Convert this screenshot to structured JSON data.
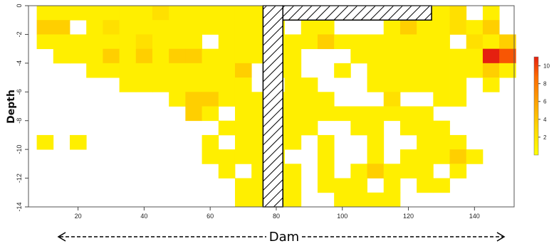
{
  "chart_data": {
    "type": "heatmap",
    "xlabel": "Dam",
    "ylabel": "Depth",
    "xlim": [
      5,
      152
    ],
    "ylim": [
      -14,
      0
    ],
    "x_ticks": [
      20,
      40,
      60,
      80,
      100,
      120,
      140
    ],
    "y_ticks": [
      0,
      -2,
      -4,
      -6,
      -8,
      -10,
      -12,
      -14
    ],
    "cell_width": 5,
    "cell_height": 1,
    "colorscale": {
      "min": 0,
      "max": 11,
      "ticks": [
        2,
        4,
        6,
        8,
        10
      ],
      "colors": [
        "#ffff00",
        "#ffd400",
        "#ffa000",
        "#ff6a00",
        "#e52010"
      ]
    },
    "cells": [
      {
        "x": 10,
        "y": -0.5,
        "v": 1
      },
      {
        "x": 15,
        "y": -0.5,
        "v": 1
      },
      {
        "x": 20,
        "y": -0.5,
        "v": 1
      },
      {
        "x": 25,
        "y": -0.5,
        "v": 1
      },
      {
        "x": 30,
        "y": -0.5,
        "v": 1
      },
      {
        "x": 35,
        "y": -0.5,
        "v": 1
      },
      {
        "x": 40,
        "y": -0.5,
        "v": 1
      },
      {
        "x": 45,
        "y": -0.5,
        "v": 2
      },
      {
        "x": 50,
        "y": -0.5,
        "v": 1
      },
      {
        "x": 55,
        "y": -0.5,
        "v": 1
      },
      {
        "x": 60,
        "y": -0.5,
        "v": 1
      },
      {
        "x": 65,
        "y": -0.5,
        "v": 1
      },
      {
        "x": 70,
        "y": -0.5,
        "v": 1
      },
      {
        "x": 130,
        "y": -0.5,
        "v": 1
      },
      {
        "x": 135,
        "y": -0.5,
        "v": 2
      },
      {
        "x": 145,
        "y": -0.5,
        "v": 1
      },
      {
        "x": 10,
        "y": -1.5,
        "v": 3
      },
      {
        "x": 15,
        "y": -1.5,
        "v": 3
      },
      {
        "x": 25,
        "y": -1.5,
        "v": 1
      },
      {
        "x": 30,
        "y": -1.5,
        "v": 2
      },
      {
        "x": 35,
        "y": -1.5,
        "v": 1
      },
      {
        "x": 40,
        "y": -1.5,
        "v": 1
      },
      {
        "x": 45,
        "y": -1.5,
        "v": 1
      },
      {
        "x": 50,
        "y": -1.5,
        "v": 1
      },
      {
        "x": 55,
        "y": -1.5,
        "v": 1
      },
      {
        "x": 60,
        "y": -1.5,
        "v": 1
      },
      {
        "x": 65,
        "y": -1.5,
        "v": 1
      },
      {
        "x": 70,
        "y": -1.5,
        "v": 1
      },
      {
        "x": 90,
        "y": -1.5,
        "v": 1
      },
      {
        "x": 95,
        "y": -1.5,
        "v": 1
      },
      {
        "x": 115,
        "y": -1.5,
        "v": 1
      },
      {
        "x": 120,
        "y": -1.5,
        "v": 3
      },
      {
        "x": 125,
        "y": -1.5,
        "v": 1
      },
      {
        "x": 130,
        "y": -1.5,
        "v": 1
      },
      {
        "x": 135,
        "y": -1.5,
        "v": 2
      },
      {
        "x": 140,
        "y": -1.5,
        "v": 1
      },
      {
        "x": 145,
        "y": -1.5,
        "v": 3
      },
      {
        "x": 10,
        "y": -2.5,
        "v": 1
      },
      {
        "x": 15,
        "y": -2.5,
        "v": 1
      },
      {
        "x": 20,
        "y": -2.5,
        "v": 1
      },
      {
        "x": 25,
        "y": -2.5,
        "v": 1
      },
      {
        "x": 30,
        "y": -2.5,
        "v": 1
      },
      {
        "x": 35,
        "y": -2.5,
        "v": 1
      },
      {
        "x": 40,
        "y": -2.5,
        "v": 2
      },
      {
        "x": 45,
        "y": -2.5,
        "v": 1
      },
      {
        "x": 50,
        "y": -2.5,
        "v": 1
      },
      {
        "x": 55,
        "y": -2.5,
        "v": 1
      },
      {
        "x": 65,
        "y": -2.5,
        "v": 1
      },
      {
        "x": 70,
        "y": -2.5,
        "v": 1
      },
      {
        "x": 85,
        "y": -2.5,
        "v": 1
      },
      {
        "x": 90,
        "y": -2.5,
        "v": 1
      },
      {
        "x": 95,
        "y": -2.5,
        "v": 3
      },
      {
        "x": 100,
        "y": -2.5,
        "v": 1
      },
      {
        "x": 105,
        "y": -2.5,
        "v": 1
      },
      {
        "x": 110,
        "y": -2.5,
        "v": 1
      },
      {
        "x": 115,
        "y": -2.5,
        "v": 1
      },
      {
        "x": 120,
        "y": -2.5,
        "v": 1
      },
      {
        "x": 125,
        "y": -2.5,
        "v": 1
      },
      {
        "x": 130,
        "y": -2.5,
        "v": 1
      },
      {
        "x": 140,
        "y": -2.5,
        "v": 2
      },
      {
        "x": 145,
        "y": -2.5,
        "v": 1
      },
      {
        "x": 150,
        "y": -2.5,
        "v": 3
      },
      {
        "x": 15,
        "y": -3.5,
        "v": 1
      },
      {
        "x": 20,
        "y": -3.5,
        "v": 1
      },
      {
        "x": 25,
        "y": -3.5,
        "v": 1
      },
      {
        "x": 30,
        "y": -3.5,
        "v": 3
      },
      {
        "x": 35,
        "y": -3.5,
        "v": 1
      },
      {
        "x": 40,
        "y": -3.5,
        "v": 3
      },
      {
        "x": 45,
        "y": -3.5,
        "v": 1
      },
      {
        "x": 50,
        "y": -3.5,
        "v": 3
      },
      {
        "x": 55,
        "y": -3.5,
        "v": 3
      },
      {
        "x": 60,
        "y": -3.5,
        "v": 1
      },
      {
        "x": 65,
        "y": -3.5,
        "v": 1
      },
      {
        "x": 70,
        "y": -3.5,
        "v": 1
      },
      {
        "x": 85,
        "y": -3.5,
        "v": 1
      },
      {
        "x": 105,
        "y": -3.5,
        "v": 1
      },
      {
        "x": 110,
        "y": -3.5,
        "v": 1
      },
      {
        "x": 115,
        "y": -3.5,
        "v": 1
      },
      {
        "x": 120,
        "y": -3.5,
        "v": 1
      },
      {
        "x": 125,
        "y": -3.5,
        "v": 1
      },
      {
        "x": 130,
        "y": -3.5,
        "v": 1
      },
      {
        "x": 135,
        "y": -3.5,
        "v": 1
      },
      {
        "x": 140,
        "y": -3.5,
        "v": 1
      },
      {
        "x": 145,
        "y": -3.5,
        "v": 11
      },
      {
        "x": 150,
        "y": -3.5,
        "v": 9
      },
      {
        "x": 25,
        "y": -4.5,
        "v": 1
      },
      {
        "x": 30,
        "y": -4.5,
        "v": 1
      },
      {
        "x": 35,
        "y": -4.5,
        "v": 1
      },
      {
        "x": 40,
        "y": -4.5,
        "v": 1
      },
      {
        "x": 45,
        "y": -4.5,
        "v": 1
      },
      {
        "x": 50,
        "y": -4.5,
        "v": 1
      },
      {
        "x": 55,
        "y": -4.5,
        "v": 1
      },
      {
        "x": 60,
        "y": -4.5,
        "v": 1
      },
      {
        "x": 65,
        "y": -4.5,
        "v": 1
      },
      {
        "x": 70,
        "y": -4.5,
        "v": 3
      },
      {
        "x": 85,
        "y": -4.5,
        "v": 1
      },
      {
        "x": 100,
        "y": -4.5,
        "v": 1
      },
      {
        "x": 110,
        "y": -4.5,
        "v": 1
      },
      {
        "x": 115,
        "y": -4.5,
        "v": 1
      },
      {
        "x": 120,
        "y": -4.5,
        "v": 1
      },
      {
        "x": 125,
        "y": -4.5,
        "v": 1
      },
      {
        "x": 130,
        "y": -4.5,
        "v": 1
      },
      {
        "x": 135,
        "y": -4.5,
        "v": 1
      },
      {
        "x": 140,
        "y": -4.5,
        "v": 1
      },
      {
        "x": 145,
        "y": -4.5,
        "v": 3
      },
      {
        "x": 150,
        "y": -4.5,
        "v": 1
      },
      {
        "x": 35,
        "y": -5.5,
        "v": 1
      },
      {
        "x": 40,
        "y": -5.5,
        "v": 1
      },
      {
        "x": 45,
        "y": -5.5,
        "v": 1
      },
      {
        "x": 50,
        "y": -5.5,
        "v": 1
      },
      {
        "x": 55,
        "y": -5.5,
        "v": 1
      },
      {
        "x": 60,
        "y": -5.5,
        "v": 1
      },
      {
        "x": 65,
        "y": -5.5,
        "v": 1
      },
      {
        "x": 70,
        "y": -5.5,
        "v": 1
      },
      {
        "x": 85,
        "y": -5.5,
        "v": 1
      },
      {
        "x": 90,
        "y": -5.5,
        "v": 1
      },
      {
        "x": 110,
        "y": -5.5,
        "v": 1
      },
      {
        "x": 115,
        "y": -5.5,
        "v": 1
      },
      {
        "x": 120,
        "y": -5.5,
        "v": 1
      },
      {
        "x": 125,
        "y": -5.5,
        "v": 1
      },
      {
        "x": 130,
        "y": -5.5,
        "v": 1
      },
      {
        "x": 135,
        "y": -5.5,
        "v": 1
      },
      {
        "x": 145,
        "y": -5.5,
        "v": 1
      },
      {
        "x": 50,
        "y": -6.5,
        "v": 1
      },
      {
        "x": 55,
        "y": -6.5,
        "v": 3
      },
      {
        "x": 60,
        "y": -6.5,
        "v": 3
      },
      {
        "x": 65,
        "y": -6.5,
        "v": 1
      },
      {
        "x": 70,
        "y": -6.5,
        "v": 1
      },
      {
        "x": 85,
        "y": -6.5,
        "v": 1
      },
      {
        "x": 90,
        "y": -6.5,
        "v": 1
      },
      {
        "x": 95,
        "y": -6.5,
        "v": 1
      },
      {
        "x": 115,
        "y": -6.5,
        "v": 2
      },
      {
        "x": 130,
        "y": -6.5,
        "v": 1
      },
      {
        "x": 135,
        "y": -6.5,
        "v": 1
      },
      {
        "x": 55,
        "y": -7.5,
        "v": 3
      },
      {
        "x": 60,
        "y": -7.5,
        "v": 1
      },
      {
        "x": 70,
        "y": -7.5,
        "v": 1
      },
      {
        "x": 85,
        "y": -7.5,
        "v": 1
      },
      {
        "x": 90,
        "y": -7.5,
        "v": 1
      },
      {
        "x": 95,
        "y": -7.5,
        "v": 1
      },
      {
        "x": 100,
        "y": -7.5,
        "v": 1
      },
      {
        "x": 105,
        "y": -7.5,
        "v": 1
      },
      {
        "x": 110,
        "y": -7.5,
        "v": 1
      },
      {
        "x": 115,
        "y": -7.5,
        "v": 1
      },
      {
        "x": 120,
        "y": -7.5,
        "v": 1
      },
      {
        "x": 125,
        "y": -7.5,
        "v": 1
      },
      {
        "x": 65,
        "y": -8.5,
        "v": 1
      },
      {
        "x": 70,
        "y": -8.5,
        "v": 1
      },
      {
        "x": 85,
        "y": -8.5,
        "v": 1
      },
      {
        "x": 90,
        "y": -8.5,
        "v": 1
      },
      {
        "x": 105,
        "y": -8.5,
        "v": 1
      },
      {
        "x": 110,
        "y": -8.5,
        "v": 1
      },
      {
        "x": 120,
        "y": -8.5,
        "v": 1
      },
      {
        "x": 125,
        "y": -8.5,
        "v": 1
      },
      {
        "x": 130,
        "y": -8.5,
        "v": 1
      },
      {
        "x": 10,
        "y": -9.5,
        "v": 1
      },
      {
        "x": 20,
        "y": -9.5,
        "v": 1
      },
      {
        "x": 60,
        "y": -9.5,
        "v": 1
      },
      {
        "x": 70,
        "y": -9.5,
        "v": 1
      },
      {
        "x": 85,
        "y": -9.5,
        "v": 1
      },
      {
        "x": 95,
        "y": -9.5,
        "v": 1
      },
      {
        "x": 110,
        "y": -9.5,
        "v": 1
      },
      {
        "x": 125,
        "y": -9.5,
        "v": 1
      },
      {
        "x": 130,
        "y": -9.5,
        "v": 1
      },
      {
        "x": 135,
        "y": -9.5,
        "v": 1
      },
      {
        "x": 60,
        "y": -10.5,
        "v": 1
      },
      {
        "x": 65,
        "y": -10.5,
        "v": 1
      },
      {
        "x": 70,
        "y": -10.5,
        "v": 1
      },
      {
        "x": 95,
        "y": -10.5,
        "v": 1
      },
      {
        "x": 110,
        "y": -10.5,
        "v": 1
      },
      {
        "x": 120,
        "y": -10.5,
        "v": 1
      },
      {
        "x": 125,
        "y": -10.5,
        "v": 1
      },
      {
        "x": 130,
        "y": -10.5,
        "v": 1
      },
      {
        "x": 135,
        "y": -10.5,
        "v": 3
      },
      {
        "x": 140,
        "y": -10.5,
        "v": 1
      },
      {
        "x": 65,
        "y": -11.5,
        "v": 1
      },
      {
        "x": 85,
        "y": -11.5,
        "v": 1
      },
      {
        "x": 95,
        "y": -11.5,
        "v": 1
      },
      {
        "x": 105,
        "y": -11.5,
        "v": 1
      },
      {
        "x": 110,
        "y": -11.5,
        "v": 3
      },
      {
        "x": 115,
        "y": -11.5,
        "v": 1
      },
      {
        "x": 120,
        "y": -11.5,
        "v": 1
      },
      {
        "x": 125,
        "y": -11.5,
        "v": 1
      },
      {
        "x": 135,
        "y": -11.5,
        "v": 1
      },
      {
        "x": 70,
        "y": -12.5,
        "v": 1
      },
      {
        "x": 85,
        "y": -12.5,
        "v": 1
      },
      {
        "x": 95,
        "y": -12.5,
        "v": 1
      },
      {
        "x": 100,
        "y": -12.5,
        "v": 1
      },
      {
        "x": 105,
        "y": -12.5,
        "v": 1
      },
      {
        "x": 115,
        "y": -12.5,
        "v": 1
      },
      {
        "x": 125,
        "y": -12.5,
        "v": 1
      },
      {
        "x": 130,
        "y": -12.5,
        "v": 1
      },
      {
        "x": 70,
        "y": -13.5,
        "v": 1
      },
      {
        "x": 85,
        "y": -13.5,
        "v": 1
      },
      {
        "x": 100,
        "y": -13.5,
        "v": 1
      },
      {
        "x": 105,
        "y": -13.5,
        "v": 1
      },
      {
        "x": 110,
        "y": -13.5,
        "v": 1
      },
      {
        "x": 115,
        "y": -13.5,
        "v": 1
      },
      {
        "x": 80,
        "y": -0.5,
        "v": 1
      },
      {
        "x": 80,
        "y": -1.5,
        "v": 1
      },
      {
        "x": 80,
        "y": -2.5,
        "v": 1
      },
      {
        "x": 80,
        "y": -3.5,
        "v": 1
      },
      {
        "x": 80,
        "y": -4.5,
        "v": 1
      },
      {
        "x": 80,
        "y": -6.5,
        "v": 1
      },
      {
        "x": 80,
        "y": -7.5,
        "v": 1
      },
      {
        "x": 80,
        "y": -8.5,
        "v": 1
      },
      {
        "x": 80,
        "y": -9.5,
        "v": 1
      },
      {
        "x": 80,
        "y": -10.5,
        "v": 1
      },
      {
        "x": 80,
        "y": -11.5,
        "v": 1
      },
      {
        "x": 80,
        "y": -12.5,
        "v": 1
      },
      {
        "x": 80,
        "y": -13.5,
        "v": 1
      },
      {
        "x": 75,
        "y": -0.5,
        "v": 1
      },
      {
        "x": 75,
        "y": -1.5,
        "v": 1
      },
      {
        "x": 75,
        "y": -2.5,
        "v": 1
      },
      {
        "x": 75,
        "y": -3.5,
        "v": 1
      },
      {
        "x": 75,
        "y": -6.5,
        "v": 1
      },
      {
        "x": 75,
        "y": -7.5,
        "v": 1
      },
      {
        "x": 75,
        "y": -8.5,
        "v": 1
      },
      {
        "x": 75,
        "y": -9.5,
        "v": 1
      },
      {
        "x": 75,
        "y": -10.5,
        "v": 1
      },
      {
        "x": 75,
        "y": -11.5,
        "v": 1
      },
      {
        "x": 75,
        "y": -12.5,
        "v": 1
      },
      {
        "x": 75,
        "y": -13.5,
        "v": 1
      },
      {
        "x": 85,
        "y": -0.5,
        "v": 1
      },
      {
        "x": 90,
        "y": -0.5,
        "v": 1
      },
      {
        "x": 95,
        "y": -0.5,
        "v": 1
      },
      {
        "x": 100,
        "y": -0.5,
        "v": 1
      },
      {
        "x": 105,
        "y": -0.5,
        "v": 1
      },
      {
        "x": 110,
        "y": -0.5,
        "v": 1
      },
      {
        "x": 115,
        "y": -0.5,
        "v": 1
      },
      {
        "x": 120,
        "y": -0.5,
        "v": 1
      },
      {
        "x": 125,
        "y": -0.5,
        "v": 1
      }
    ],
    "hatched_regions": [
      {
        "name": "dam-vertical",
        "x0": 76,
        "x1": 82,
        "y0": -14,
        "y1": 0
      },
      {
        "name": "dam-horizontal",
        "x0": 82,
        "x1": 127,
        "y0": -1,
        "y1": 0
      }
    ],
    "annotation": {
      "label": "Dam",
      "arrow_from": "left",
      "arrow_to": "right"
    }
  }
}
